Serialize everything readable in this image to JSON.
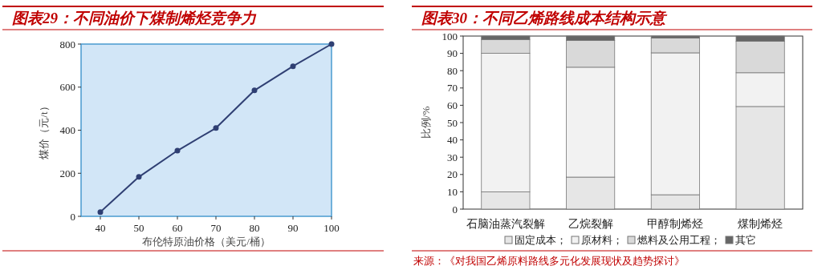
{
  "chart_data": [
    {
      "type": "line",
      "title": "图表29：不同油价下煤制烯烃竞争力",
      "xlabel": "布伦特原油价格（美元/桶）",
      "ylabel": "煤价（元/t）",
      "x": [
        40,
        50,
        60,
        70,
        80,
        90,
        100
      ],
      "series": [
        {
          "color": "#2f3f73",
          "values": [
            20,
            183,
            305,
            410,
            585,
            697,
            800
          ]
        }
      ],
      "xlim": [
        35,
        100
      ],
      "xticks": [
        40,
        50,
        60,
        70,
        80,
        90,
        100
      ],
      "ylim": [
        0,
        800
      ],
      "yticks": [
        0,
        200,
        400,
        600,
        800
      ],
      "marker": "circle",
      "line_style": "solid",
      "grid": false
    },
    {
      "type": "bar",
      "stacked": true,
      "title": "图表30：不同乙烯路线成本结构示意",
      "ylabel": "比例/%",
      "categories": [
        "石脑油蒸汽裂解",
        "乙烷裂解",
        "甲醇制烯烃",
        "煤制烯烃"
      ],
      "series": [
        {
          "name": "固定成本；",
          "color": "#e6e6e6",
          "values": [
            10,
            18.5,
            8.3,
            59.3
          ]
        },
        {
          "name": "原材料；",
          "color": "#f2f2f2",
          "values": [
            80,
            63.5,
            82,
            19.5
          ]
        },
        {
          "name": "燃料及公用工程；",
          "color": "#d9d9d9",
          "values": [
            8,
            15.5,
            8.5,
            18.2
          ]
        },
        {
          "name": "其它",
          "color": "#666666",
          "values": [
            2,
            2.5,
            1.2,
            3
          ]
        }
      ],
      "ylim": [
        0,
        100
      ],
      "yticks": [
        0,
        10,
        20,
        30,
        40,
        50,
        60,
        70,
        80,
        90,
        100
      ],
      "grid": false,
      "legend": "bottom",
      "annotations": [
        "来源：《对我国乙烯原料路线多元化发展现状及趋势探讨》"
      ]
    }
  ]
}
